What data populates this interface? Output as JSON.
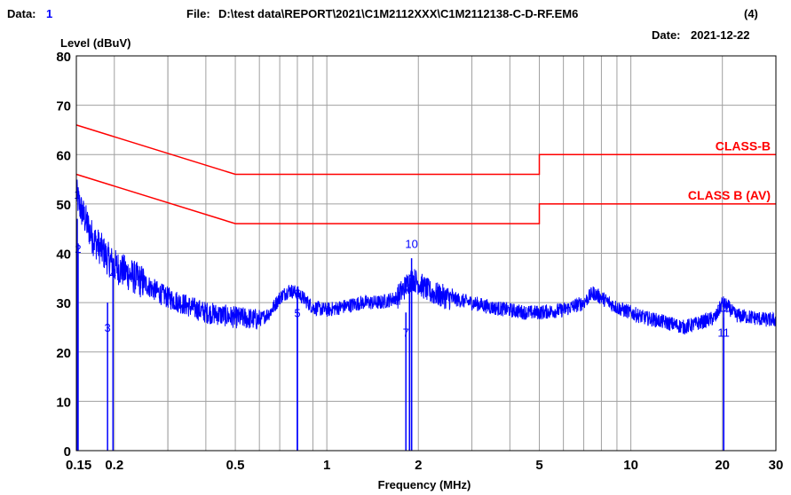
{
  "header": {
    "data_label": "Data:",
    "data_value": "1",
    "file_label": "File:",
    "file_value": "D:\\test data\\REPORT\\2021\\C1M2112XXX\\C1M2112138-C-D-RF.EM6",
    "file_suffix": "(4)",
    "date_label": "Date:",
    "date_value": "2021-12-22"
  },
  "chart_data": {
    "type": "line",
    "ylabel": "Level (dBuV)",
    "xlabel": "Frequency (MHz)",
    "xscale": "log",
    "xlim": [
      0.15,
      30
    ],
    "ylim": [
      0,
      80
    ],
    "x_ticks": [
      {
        "value": 0.15,
        "label": "0.15"
      },
      {
        "value": 0.2,
        "label": "0.2"
      },
      {
        "value": 0.5,
        "label": "0.5"
      },
      {
        "value": 1,
        "label": "1"
      },
      {
        "value": 2,
        "label": "2"
      },
      {
        "value": 5,
        "label": "5"
      },
      {
        "value": 10,
        "label": "10"
      },
      {
        "value": 20,
        "label": "20"
      },
      {
        "value": 30,
        "label": "30"
      }
    ],
    "y_ticks": [
      0,
      10,
      20,
      30,
      40,
      50,
      60,
      70,
      80
    ],
    "grid": true,
    "limit_lines": [
      {
        "name": "CLASS-B",
        "color": "#ff0000",
        "points": [
          [
            0.15,
            66
          ],
          [
            0.5,
            56
          ],
          [
            5,
            56
          ],
          [
            5,
            60
          ],
          [
            30,
            60
          ]
        ]
      },
      {
        "name": "CLASS B (AV)",
        "color": "#ff0000",
        "points": [
          [
            0.15,
            56
          ],
          [
            0.5,
            46
          ],
          [
            5,
            46
          ],
          [
            5,
            50
          ],
          [
            30,
            50
          ]
        ]
      }
    ],
    "trace": {
      "color": "#0000ff",
      "points": [
        [
          0.15,
          52
        ],
        [
          0.155,
          49
        ],
        [
          0.16,
          47
        ],
        [
          0.165,
          45
        ],
        [
          0.17,
          43
        ],
        [
          0.18,
          41
        ],
        [
          0.19,
          39
        ],
        [
          0.2,
          37.5
        ],
        [
          0.22,
          36
        ],
        [
          0.25,
          34
        ],
        [
          0.28,
          32
        ],
        [
          0.3,
          31
        ],
        [
          0.33,
          30
        ],
        [
          0.36,
          29
        ],
        [
          0.4,
          28
        ],
        [
          0.45,
          27.5
        ],
        [
          0.5,
          27
        ],
        [
          0.55,
          26.8
        ],
        [
          0.6,
          26.5
        ],
        [
          0.65,
          28
        ],
        [
          0.7,
          31
        ],
        [
          0.75,
          32.5
        ],
        [
          0.8,
          32
        ],
        [
          0.85,
          30.5
        ],
        [
          0.9,
          29
        ],
        [
          1.0,
          28.5
        ],
        [
          1.1,
          29
        ],
        [
          1.2,
          29.5
        ],
        [
          1.3,
          30
        ],
        [
          1.5,
          30
        ],
        [
          1.7,
          31
        ],
        [
          1.8,
          33
        ],
        [
          1.9,
          35
        ],
        [
          2.0,
          34
        ],
        [
          2.2,
          32
        ],
        [
          2.5,
          31
        ],
        [
          3.0,
          30
        ],
        [
          3.5,
          29
        ],
        [
          4.0,
          28.5
        ],
        [
          4.5,
          28
        ],
        [
          5.0,
          28
        ],
        [
          6.0,
          28.5
        ],
        [
          7.0,
          30
        ],
        [
          7.5,
          32
        ],
        [
          8.0,
          31
        ],
        [
          9.0,
          29
        ],
        [
          10,
          28
        ],
        [
          11,
          27
        ],
        [
          12,
          26.5
        ],
        [
          13,
          26
        ],
        [
          15,
          25
        ],
        [
          17,
          26
        ],
        [
          19,
          27
        ],
        [
          20,
          30
        ],
        [
          21,
          29
        ],
        [
          22,
          27.5
        ],
        [
          25,
          27
        ],
        [
          28,
          26.5
        ],
        [
          30,
          26.5
        ]
      ]
    },
    "markers": [
      {
        "id": "1",
        "x": 0.151,
        "y": 47,
        "label_y": 52
      },
      {
        "id": "2",
        "x": 0.152,
        "y": 42,
        "label_y": 41
      },
      {
        "id": "3",
        "x": 0.19,
        "y": 30,
        "label_y": 25
      },
      {
        "id": "4",
        "x": 0.198,
        "y": 38,
        "label_y": 36
      },
      {
        "id": "5",
        "x": 0.8,
        "y": 31,
        "label_y": 28
      },
      {
        "id": "6",
        "x": 0.8,
        "y": 32,
        "label_y": 32
      },
      {
        "id": "7",
        "x": 1.82,
        "y": 28,
        "label_y": 24
      },
      {
        "id": "8",
        "x": 1.87,
        "y": 33,
        "label_y": 33
      },
      {
        "id": "9",
        "x": 1.9,
        "y": 34,
        "label_y": 35
      },
      {
        "id": "10",
        "x": 1.9,
        "y": 39,
        "label_y": 42
      },
      {
        "id": "11",
        "x": 20.2,
        "y": 27,
        "label_y": 24
      },
      {
        "id": "12",
        "x": 20.2,
        "y": 30,
        "label_y": 29
      }
    ]
  }
}
